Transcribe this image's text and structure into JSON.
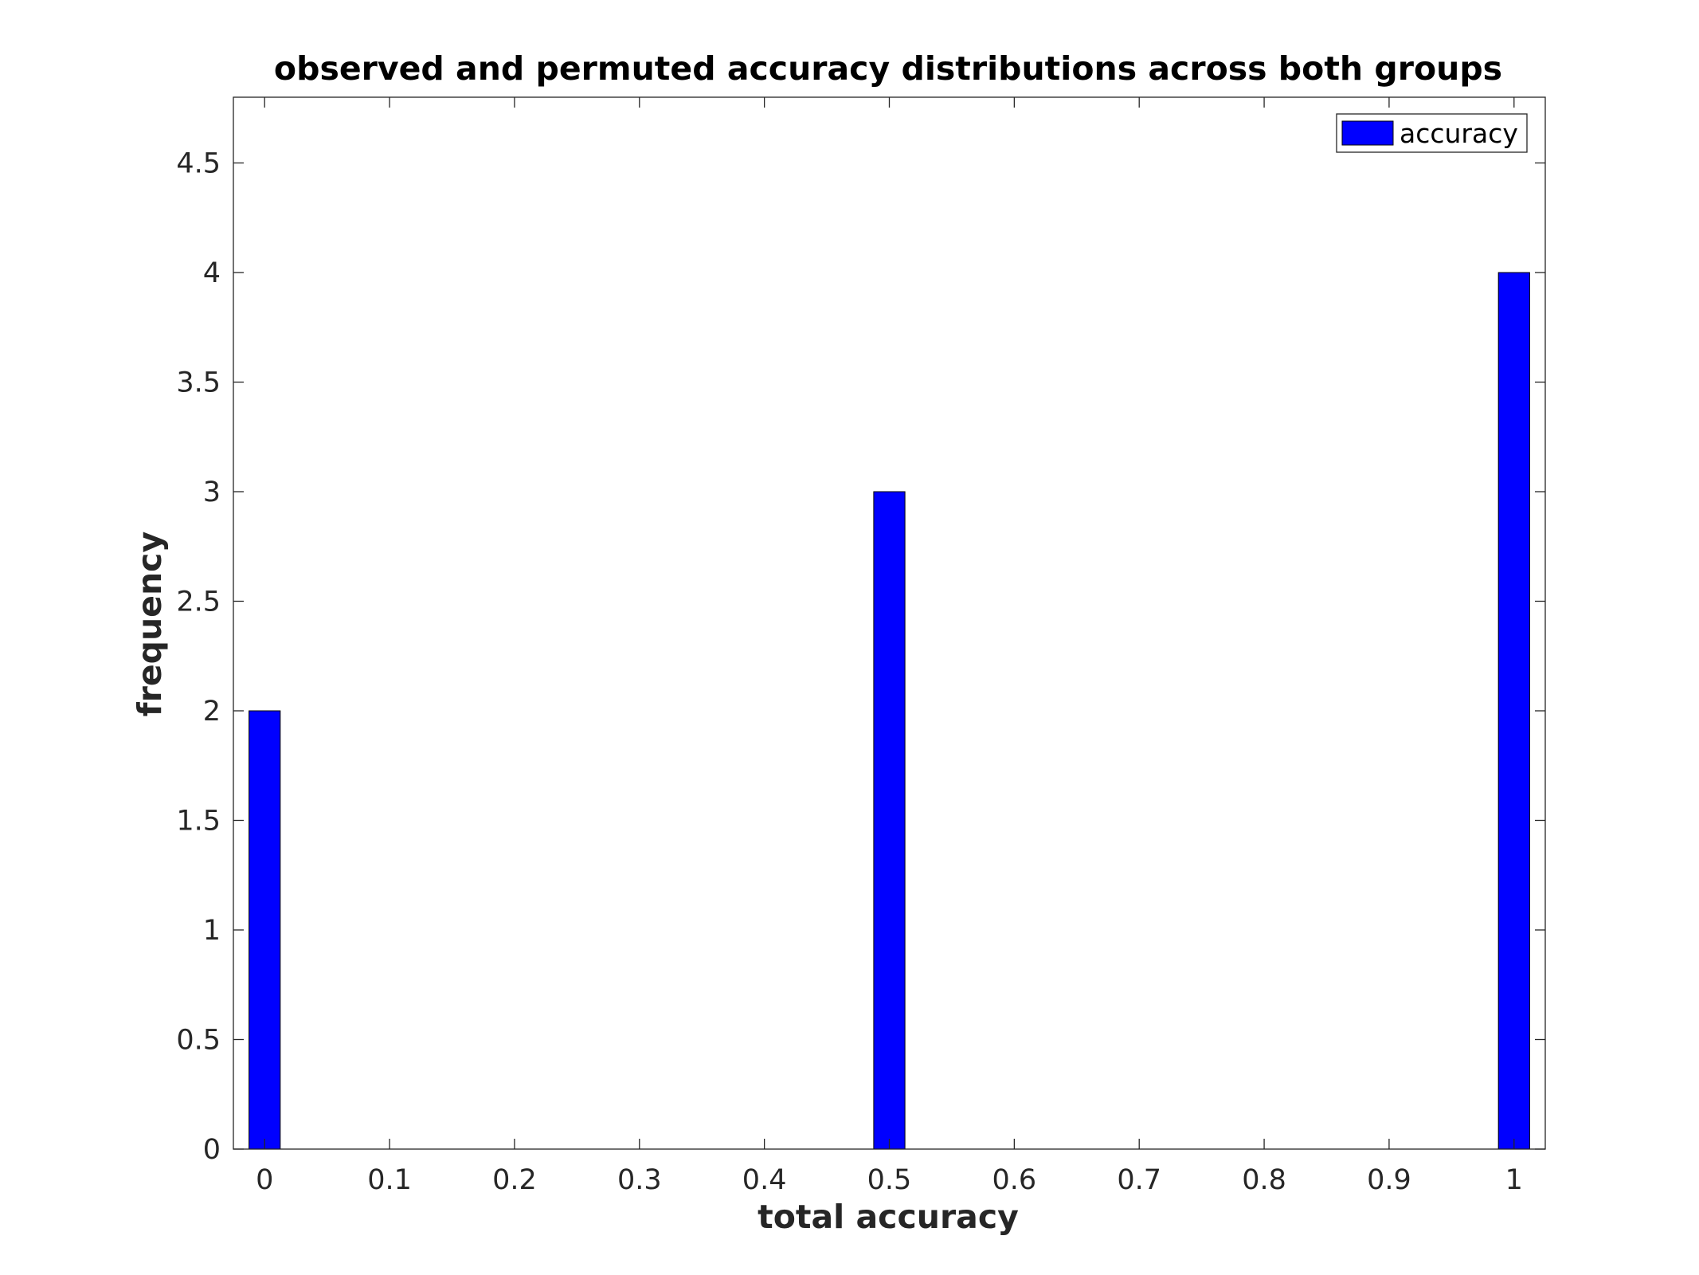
{
  "chart_data": {
    "type": "bar",
    "title": "observed and permuted accuracy distributions across both groups",
    "xlabel": "total accuracy",
    "ylabel": "frequency",
    "x": [
      0,
      0.5,
      1
    ],
    "series": [
      {
        "name": "accuracy",
        "values": [
          2,
          3,
          4
        ],
        "color": "#0000ff"
      }
    ],
    "bar_width": 0.025,
    "xlim": [
      -0.025,
      1.025
    ],
    "ylim": [
      0,
      4.8
    ],
    "xticks": [
      0,
      0.1,
      0.2,
      0.3,
      0.4,
      0.5,
      0.6,
      0.7,
      0.8,
      0.9,
      1
    ],
    "xtick_labels": [
      "0",
      "0.1",
      "0.2",
      "0.3",
      "0.4",
      "0.5",
      "0.6",
      "0.7",
      "0.8",
      "0.9",
      "1"
    ],
    "yticks": [
      0,
      0.5,
      1,
      1.5,
      2,
      2.5,
      3,
      3.5,
      4,
      4.5
    ],
    "ytick_labels": [
      "0",
      "0.5",
      "1",
      "1.5",
      "2",
      "2.5",
      "3",
      "3.5",
      "4",
      "4.5"
    ],
    "grid": false,
    "legend_position": "top-right"
  }
}
